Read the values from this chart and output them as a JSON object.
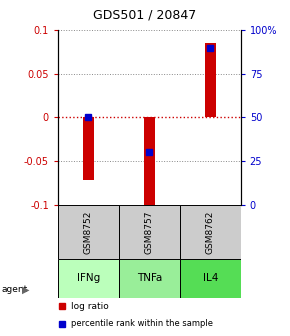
{
  "title": "GDS501 / 20847",
  "categories": [
    "GSM8752",
    "GSM8757",
    "GSM8762"
  ],
  "agents": [
    "IFNg",
    "TNFa",
    "IL4"
  ],
  "log_ratios": [
    -0.072,
    -0.108,
    0.085
  ],
  "percentile_ranks": [
    50,
    30,
    90
  ],
  "bar_color": "#cc0000",
  "percentile_color": "#0000cc",
  "ylim_left": [
    -0.1,
    0.1
  ],
  "yticks_left": [
    -0.1,
    -0.05,
    0.0,
    0.05,
    0.1
  ],
  "ytick_labels_left": [
    "-0.1",
    "-0.05",
    "0",
    "0.05",
    "0.1"
  ],
  "yticks_right": [
    0,
    25,
    50,
    75,
    100
  ],
  "ytick_labels_right": [
    "0",
    "25",
    "50",
    "75",
    "100%"
  ],
  "agent_colors": [
    "#bbffbb",
    "#99ee99",
    "#55dd55"
  ],
  "gsm_bg_color": "#cccccc",
  "legend_log_ratio": "log ratio",
  "legend_percentile": "percentile rank within the sample",
  "bar_width": 0.18
}
